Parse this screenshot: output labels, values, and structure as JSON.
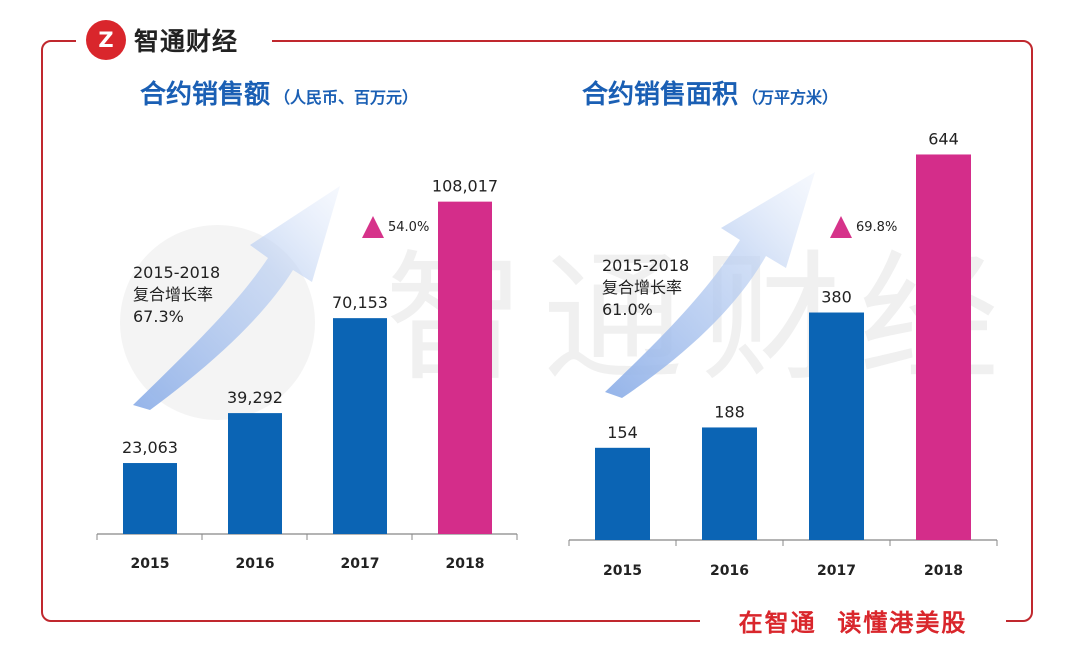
{
  "header": {
    "logo_mark": "Z",
    "brand": "智通财经"
  },
  "footer": {
    "slogan": "在智通  读懂港美股"
  },
  "watermark": {
    "text": "智通财经"
  },
  "colors": {
    "primary_bar": "#0b64b4",
    "highlight_bar": "#d42d8a",
    "title": "#1a5fb4",
    "accent": "#d9262c"
  },
  "chart_data": [
    {
      "type": "bar",
      "title": "合约销售额",
      "unit": "（人民币、百万元）",
      "categories": [
        "2015",
        "2016",
        "2017",
        "2018"
      ],
      "values": [
        23063,
        39292,
        70153,
        108017
      ],
      "value_labels": [
        "23,063",
        "39,292",
        "70,153",
        "108,017"
      ],
      "highlight_index": 3,
      "ylim": [
        0,
        130000
      ],
      "cagr": {
        "period": "2015-2018",
        "label": "复合增长率",
        "value": "67.3%"
      },
      "growth": "54.0%"
    },
    {
      "type": "bar",
      "title": "合约销售面积",
      "unit": "（万平方米）",
      "categories": [
        "2015",
        "2016",
        "2017",
        "2018"
      ],
      "values": [
        154,
        188,
        380,
        644
      ],
      "value_labels": [
        "154",
        "188",
        "380",
        "644"
      ],
      "highlight_index": 3,
      "ylim": [
        0,
        735
      ],
      "cagr": {
        "period": "2015-2018",
        "label": "复合增长率",
        "value": "61.0%"
      },
      "growth": "69.8%"
    }
  ]
}
